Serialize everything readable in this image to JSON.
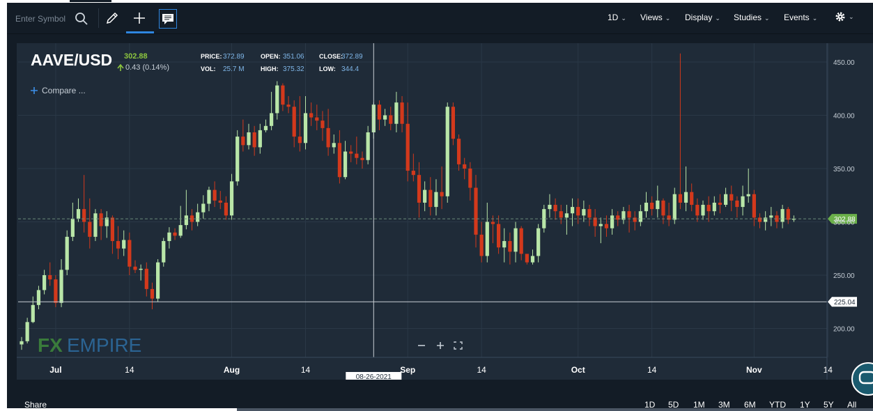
{
  "toolbar": {
    "symbol_placeholder": "Enter Symbol",
    "menus": {
      "interval": "1D",
      "views": "Views",
      "display": "Display",
      "studies": "Studies",
      "events": "Events"
    }
  },
  "header": {
    "symbol": "AAVE/USD",
    "price": "302.88",
    "change": "0.43 (0.14%)",
    "stats": {
      "price_label": "PRICE:",
      "price_value": "372.89",
      "open_label": "OPEN:",
      "open_value": "351.06",
      "close_label": "CLOSE:",
      "close_value": "372.89",
      "vol_label": "VOL:",
      "vol_value": "25.7 M",
      "high_label": "HIGH:",
      "high_value": "375.32",
      "low_label": "LOW:",
      "low_value": "344.4"
    },
    "compare": "Compare ..."
  },
  "chart_data": {
    "type": "candlestick",
    "title": "",
    "xlabel": "",
    "ylabel": "",
    "ylim": [
      177,
      461
    ],
    "yticks": [
      200,
      250,
      300,
      350,
      400,
      450
    ],
    "ytick_labels": [
      "200.00",
      "250.00",
      "300.00",
      "350.00",
      "400.00",
      "450.00"
    ],
    "xticks": [
      {
        "label": "Jul",
        "bold": true,
        "date": "2021-07-01"
      },
      {
        "label": "14",
        "bold": false,
        "date": "2021-07-14"
      },
      {
        "label": "Aug",
        "bold": true,
        "date": "2021-08-01"
      },
      {
        "label": "14",
        "bold": false,
        "date": "2021-08-14"
      },
      {
        "label": "Sep",
        "bold": true,
        "date": "2021-09-01"
      },
      {
        "label": "14",
        "bold": false,
        "date": "2021-09-14"
      },
      {
        "label": "Oct",
        "bold": true,
        "date": "2021-10-01"
      },
      {
        "label": "14",
        "bold": false,
        "date": "2021-10-14"
      },
      {
        "label": "Nov",
        "bold": true,
        "date": "2021-11-01"
      },
      {
        "label": "14",
        "bold": false,
        "date": "2021-11-14"
      }
    ],
    "start_date": "2021-06-25",
    "candles": [
      [
        185,
        188,
        180,
        192
      ],
      [
        188,
        206,
        186,
        210
      ],
      [
        206,
        222,
        205,
        230
      ],
      [
        222,
        236,
        218,
        240
      ],
      [
        236,
        250,
        232,
        255
      ],
      [
        250,
        246,
        240,
        262
      ],
      [
        246,
        224,
        220,
        250
      ],
      [
        224,
        255,
        220,
        265
      ],
      [
        255,
        286,
        250,
        292
      ],
      [
        286,
        303,
        282,
        318
      ],
      [
        303,
        312,
        300,
        322
      ],
      [
        312,
        300,
        290,
        344
      ],
      [
        300,
        286,
        275,
        322
      ],
      [
        286,
        308,
        282,
        312
      ],
      [
        308,
        296,
        283,
        312
      ],
      [
        296,
        304,
        285,
        310
      ],
      [
        304,
        282,
        270,
        306
      ],
      [
        282,
        275,
        265,
        296
      ],
      [
        275,
        283,
        268,
        292
      ],
      [
        283,
        258,
        250,
        290
      ],
      [
        258,
        255,
        252,
        264
      ],
      [
        255,
        256,
        245,
        260
      ],
      [
        256,
        237,
        230,
        262
      ],
      [
        237,
        228,
        218,
        243
      ],
      [
        228,
        262,
        225,
        265
      ],
      [
        262,
        282,
        258,
        285
      ],
      [
        282,
        290,
        275,
        295
      ],
      [
        290,
        287,
        283,
        294
      ],
      [
        287,
        297,
        285,
        315
      ],
      [
        297,
        306,
        293,
        330
      ],
      [
        306,
        300,
        292,
        312
      ],
      [
        300,
        309,
        296,
        317
      ],
      [
        309,
        317,
        303,
        325
      ],
      [
        317,
        330,
        310,
        333
      ],
      [
        330,
        320,
        314,
        338
      ],
      [
        320,
        318,
        312,
        329
      ],
      [
        318,
        306,
        302,
        324
      ],
      [
        306,
        338,
        302,
        345
      ],
      [
        338,
        380,
        334,
        386
      ],
      [
        380,
        372,
        366,
        396
      ],
      [
        372,
        384,
        368,
        392
      ],
      [
        384,
        370,
        362,
        390
      ],
      [
        370,
        386,
        364,
        392
      ],
      [
        386,
        390,
        384,
        396
      ],
      [
        390,
        402,
        386,
        422
      ],
      [
        402,
        428,
        396,
        432
      ],
      [
        428,
        410,
        404,
        430
      ],
      [
        410,
        408,
        402,
        418
      ],
      [
        408,
        380,
        370,
        414
      ],
      [
        380,
        374,
        366,
        418
      ],
      [
        374,
        402,
        368,
        418
      ],
      [
        402,
        398,
        390,
        412
      ],
      [
        398,
        395,
        386,
        410
      ],
      [
        395,
        388,
        376,
        404
      ],
      [
        388,
        370,
        362,
        406
      ],
      [
        370,
        374,
        364,
        382
      ],
      [
        374,
        342,
        336,
        386
      ],
      [
        342,
        366,
        340,
        376
      ],
      [
        366,
        364,
        356,
        372
      ],
      [
        364,
        360,
        354,
        380
      ],
      [
        360,
        358,
        350,
        366
      ],
      [
        358,
        384,
        354,
        390
      ],
      [
        384,
        410,
        378,
        412
      ],
      [
        410,
        396,
        386,
        414
      ],
      [
        396,
        400,
        390,
        406
      ],
      [
        400,
        392,
        386,
        408
      ],
      [
        392,
        412,
        384,
        422
      ],
      [
        412,
        392,
        384,
        418
      ],
      [
        392,
        348,
        338,
        412
      ],
      [
        348,
        344,
        338,
        364
      ],
      [
        344,
        318,
        304,
        356
      ],
      [
        318,
        330,
        310,
        338
      ],
      [
        330,
        314,
        306,
        342
      ],
      [
        314,
        328,
        306,
        340
      ],
      [
        328,
        324,
        312,
        352
      ],
      [
        324,
        408,
        318,
        412
      ],
      [
        408,
        378,
        372,
        412
      ],
      [
        378,
        354,
        348,
        382
      ],
      [
        354,
        350,
        340,
        360
      ],
      [
        350,
        332,
        320,
        356
      ],
      [
        332,
        288,
        276,
        344
      ],
      [
        288,
        268,
        262,
        300
      ],
      [
        268,
        300,
        262,
        318
      ],
      [
        300,
        298,
        280,
        306
      ],
      [
        298,
        276,
        270,
        306
      ],
      [
        276,
        282,
        262,
        294
      ],
      [
        282,
        272,
        260,
        290
      ],
      [
        272,
        294,
        262,
        300
      ],
      [
        294,
        270,
        264,
        296
      ],
      [
        270,
        262,
        260,
        268
      ],
      [
        262,
        268,
        260,
        274
      ],
      [
        268,
        294,
        262,
        298
      ],
      [
        294,
        312,
        290,
        316
      ],
      [
        312,
        316,
        304,
        326
      ],
      [
        316,
        310,
        302,
        322
      ],
      [
        310,
        304,
        298,
        316
      ],
      [
        304,
        308,
        288,
        316
      ],
      [
        308,
        314,
        296,
        322
      ],
      [
        314,
        306,
        298,
        322
      ],
      [
        306,
        312,
        300,
        320
      ],
      [
        312,
        304,
        296,
        316
      ],
      [
        304,
        296,
        286,
        312
      ],
      [
        296,
        298,
        280,
        304
      ],
      [
        298,
        294,
        286,
        306
      ],
      [
        294,
        306,
        288,
        312
      ],
      [
        306,
        302,
        296,
        310
      ],
      [
        302,
        310,
        298,
        314
      ],
      [
        310,
        304,
        290,
        316
      ],
      [
        304,
        300,
        292,
        310
      ],
      [
        300,
        310,
        296,
        316
      ],
      [
        310,
        318,
        304,
        328
      ],
      [
        318,
        312,
        306,
        324
      ],
      [
        312,
        320,
        304,
        334
      ],
      [
        320,
        306,
        298,
        322
      ],
      [
        306,
        302,
        296,
        318
      ],
      [
        302,
        326,
        298,
        332
      ],
      [
        326,
        318,
        312,
        333
      ],
      [
        318,
        328,
        310,
        352
      ],
      [
        328,
        316,
        310,
        336
      ],
      [
        316,
        306,
        300,
        322
      ],
      [
        306,
        316,
        302,
        320
      ],
      [
        316,
        310,
        300,
        324
      ],
      [
        310,
        318,
        306,
        324
      ],
      [
        318,
        316,
        308,
        326
      ],
      [
        316,
        326,
        314,
        332
      ],
      [
        326,
        320,
        310,
        334
      ],
      [
        320,
        314,
        304,
        324
      ],
      [
        314,
        324,
        306,
        334
      ],
      [
        324,
        326,
        318,
        350
      ],
      [
        326,
        304,
        296,
        330
      ],
      [
        304,
        300,
        294,
        308
      ],
      [
        300,
        304,
        292,
        310
      ],
      [
        304,
        306,
        296,
        314
      ],
      [
        306,
        300,
        294,
        310
      ],
      [
        300,
        312,
        294,
        316
      ],
      [
        312,
        302,
        298,
        314
      ],
      [
        302,
        303,
        300,
        306
      ]
    ],
    "spike": {
      "index": 116,
      "high": 458
    },
    "last_price": 302.88,
    "last_price_label": "302.88",
    "crosshair_value": 225.04,
    "crosshair_label": "225.04",
    "crosshair_date": "08-26-2021",
    "colors": {
      "up": "#b9e6a8",
      "down": "#d3391c",
      "price_tag": "#6bb04a",
      "background": "#1f2b38",
      "grid": "#2a3847"
    }
  },
  "watermark": {
    "fx": "FX",
    "empire": "EMPIRE"
  },
  "footer": {
    "share": "Share",
    "ranges": [
      "1D",
      "5D",
      "1M",
      "3M",
      "6M",
      "YTD",
      "1Y",
      "5Y",
      "All"
    ]
  }
}
